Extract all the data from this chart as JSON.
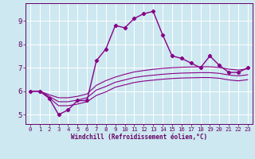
{
  "xlabel": "Windchill (Refroidissement éolien,°C)",
  "background_color": "#cde8f0",
  "grid_color": "#ffffff",
  "line_color": "#880088",
  "xlim": [
    -0.5,
    23.5
  ],
  "ylim": [
    4.6,
    9.75
  ],
  "xticks": [
    0,
    1,
    2,
    3,
    4,
    5,
    6,
    7,
    8,
    9,
    10,
    11,
    12,
    13,
    14,
    15,
    16,
    17,
    18,
    19,
    20,
    21,
    22,
    23
  ],
  "yticks": [
    5,
    6,
    7,
    8,
    9
  ],
  "series1_x": [
    0,
    1,
    2,
    3,
    4,
    5,
    6,
    7,
    8,
    9,
    10,
    11,
    12,
    13,
    14,
    15,
    16,
    17,
    18,
    19,
    20,
    21,
    22,
    23
  ],
  "series1_y": [
    6.0,
    6.0,
    5.7,
    5.0,
    5.2,
    5.6,
    5.6,
    7.3,
    7.8,
    8.8,
    8.7,
    9.1,
    9.3,
    9.4,
    8.4,
    7.5,
    7.4,
    7.2,
    7.0,
    7.5,
    7.1,
    6.8,
    6.8,
    7.0
  ],
  "series2_x": [
    0,
    1,
    2,
    3,
    4,
    5,
    6,
    7,
    8,
    9,
    10,
    11,
    12,
    13,
    14,
    15,
    16,
    17,
    18,
    19,
    20,
    21,
    22,
    23
  ],
  "series2_y": [
    6.0,
    6.0,
    5.85,
    5.72,
    5.72,
    5.78,
    5.88,
    6.25,
    6.45,
    6.6,
    6.72,
    6.82,
    6.88,
    6.93,
    6.97,
    7.0,
    7.02,
    7.03,
    7.04,
    7.04,
    7.01,
    6.94,
    6.9,
    6.95
  ],
  "series3_x": [
    0,
    1,
    2,
    3,
    4,
    5,
    6,
    7,
    8,
    9,
    10,
    11,
    12,
    13,
    14,
    15,
    16,
    17,
    18,
    19,
    20,
    21,
    22,
    23
  ],
  "series3_y": [
    6.0,
    6.0,
    5.78,
    5.55,
    5.55,
    5.62,
    5.72,
    6.05,
    6.2,
    6.38,
    6.48,
    6.58,
    6.64,
    6.68,
    6.72,
    6.75,
    6.77,
    6.78,
    6.79,
    6.79,
    6.76,
    6.69,
    6.65,
    6.7
  ],
  "series4_x": [
    0,
    1,
    2,
    3,
    4,
    5,
    6,
    7,
    8,
    9,
    10,
    11,
    12,
    13,
    14,
    15,
    16,
    17,
    18,
    19,
    20,
    21,
    22,
    23
  ],
  "series4_y": [
    6.0,
    6.0,
    5.72,
    5.38,
    5.38,
    5.45,
    5.55,
    5.82,
    5.97,
    6.17,
    6.27,
    6.37,
    6.43,
    6.47,
    6.51,
    6.54,
    6.56,
    6.57,
    6.58,
    6.58,
    6.55,
    6.48,
    6.44,
    6.49
  ]
}
